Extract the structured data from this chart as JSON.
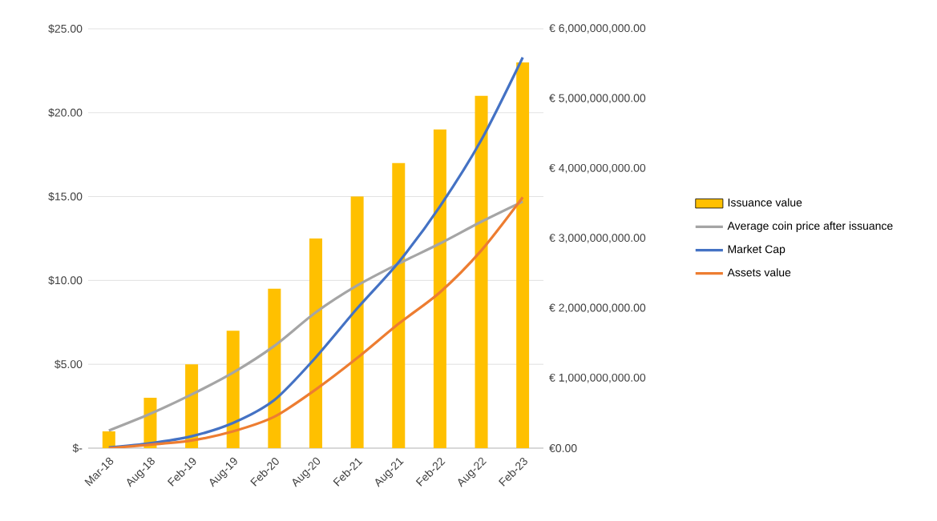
{
  "chart_data": {
    "type": "bar",
    "categories": [
      "Mar-18",
      "Aug-18",
      "Feb-19",
      "Aug-19",
      "Feb-20",
      "Aug-20",
      "Feb-21",
      "Aug-21",
      "Feb-22",
      "Aug-22",
      "Feb-23"
    ],
    "series": [
      {
        "name": "Issuance value",
        "color": "#ffc000",
        "values": [
          1,
          3,
          5,
          7,
          9.5,
          12.5,
          15,
          17,
          19,
          21,
          23
        ]
      },
      {
        "name": "Average coin price after issuance",
        "type": "line",
        "color": "#a5a5a5",
        "values": [
          1.05,
          2.05,
          3.2,
          4.5,
          6.1,
          8.1,
          9.7,
          11,
          12.2,
          13.5,
          14.7
        ]
      },
      {
        "name": "Market Cap",
        "type": "line",
        "axis": "y2",
        "color": "#4472c4",
        "values": [
          10000000,
          70000000,
          170000000,
          360000000,
          690000000,
          1300000000,
          2000000000,
          2660000000,
          3460000000,
          4410000000,
          5590000000
        ]
      },
      {
        "name": "Assets value",
        "type": "line",
        "axis": "y2",
        "color": "#ed7d31",
        "values": [
          0,
          50000000,
          110000000,
          240000000,
          450000000,
          840000000,
          1290000000,
          1780000000,
          2230000000,
          2830000000,
          3590000000
        ]
      }
    ],
    "ylim": [
      0,
      25
    ],
    "yticks": [
      {
        "value": 0,
        "label": "$-"
      },
      {
        "value": 5,
        "label": "$5.00"
      },
      {
        "value": 10,
        "label": "$10.00"
      },
      {
        "value": 15,
        "label": "$15.00"
      },
      {
        "value": 20,
        "label": "$20.00"
      },
      {
        "value": 25,
        "label": "$25.00"
      }
    ],
    "y2lim": [
      0,
      6000000000
    ],
    "y2ticks": [
      {
        "value": 0,
        "label": "€0.00"
      },
      {
        "value": 1000000000,
        "label": "€ 1,000,000,000.00"
      },
      {
        "value": 2000000000,
        "label": "€ 2,000,000,000.00"
      },
      {
        "value": 3000000000,
        "label": "€ 3,000,000,000.00"
      },
      {
        "value": 4000000000,
        "label": "€ 4,000,000,000.00"
      },
      {
        "value": 5000000000,
        "label": "€ 5,000,000,000.00"
      },
      {
        "value": 6000000000,
        "label": "€ 6,000,000,000.00"
      }
    ],
    "grid": "y",
    "legend": "right"
  }
}
